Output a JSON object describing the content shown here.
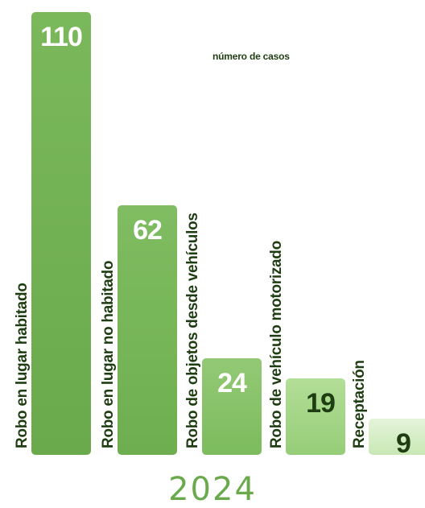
{
  "chart_data": {
    "type": "bar",
    "title": "",
    "legend": "número de casos",
    "categories": [
      "Robo en lugar habitado",
      "Robo en lugar no habitado",
      "Robo de objetos desde vehículos",
      "Robo de vehículo motorizado",
      "Receptación"
    ],
    "values": [
      110,
      62,
      24,
      19,
      9
    ],
    "year": "2024",
    "colors": {
      "bars_top": [
        "#7bb85c",
        "#80bc61",
        "#93c975",
        "#b3de97",
        "#e4f4d9"
      ],
      "bars_bottom": [
        "#6aa94c",
        "#6eae50",
        "#7dbb5e",
        "#96cd78",
        "#c9e8b5"
      ],
      "value_label_light": "#ffffff",
      "value_label_dark": "#1f3d12",
      "category_label": "#1f3d12",
      "year": "#6aaa4c"
    }
  }
}
